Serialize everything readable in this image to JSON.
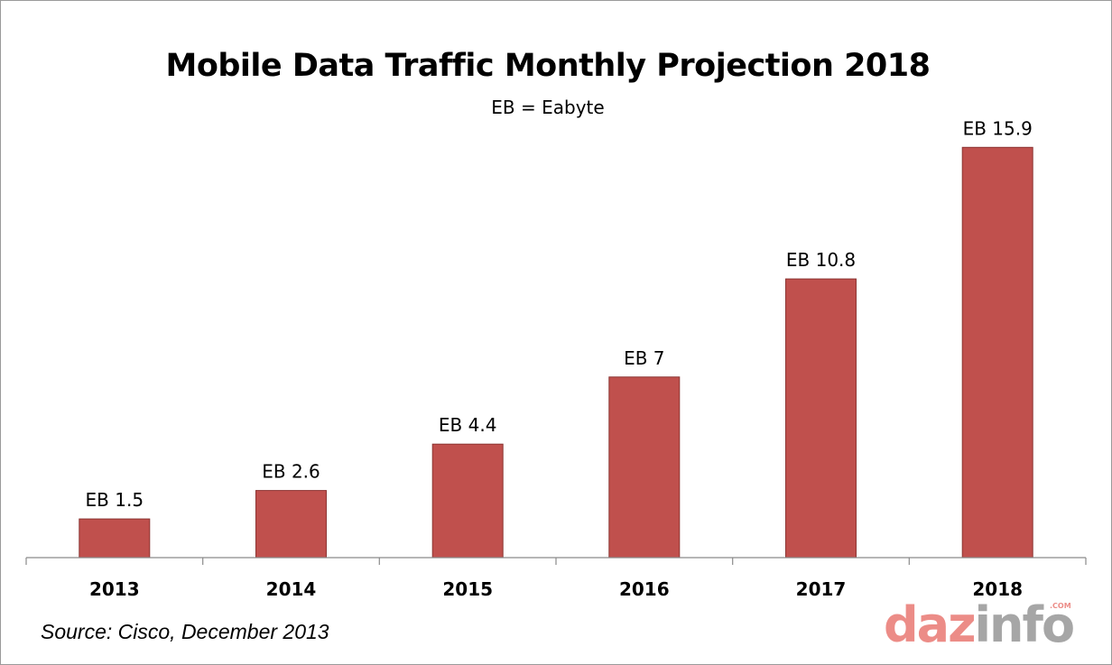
{
  "chart_data": {
    "type": "bar",
    "title": "Mobile Data Traffic Monthly Projection 2018",
    "subtitle": "EB = Eabyte",
    "categories": [
      "2013",
      "2014",
      "2015",
      "2016",
      "2017",
      "2018"
    ],
    "values": [
      1.5,
      2.6,
      4.4,
      7,
      10.8,
      15.9
    ],
    "data_labels": [
      "EB 1.5",
      "EB 2.6",
      "EB 4.4",
      "EB 7",
      "EB 10.8",
      "EB 15.9"
    ],
    "xlabel": "",
    "ylabel": "",
    "ylim": [
      0,
      18
    ],
    "grid": false,
    "bar_color": "#c0504d"
  },
  "source": "Source: Cisco, December 2013",
  "logo": {
    "part_a": "daz",
    "part_b": "info",
    "suffix": ".COM",
    "color_primary": "#ec8c87",
    "color_secondary": "#a6a6a6"
  }
}
